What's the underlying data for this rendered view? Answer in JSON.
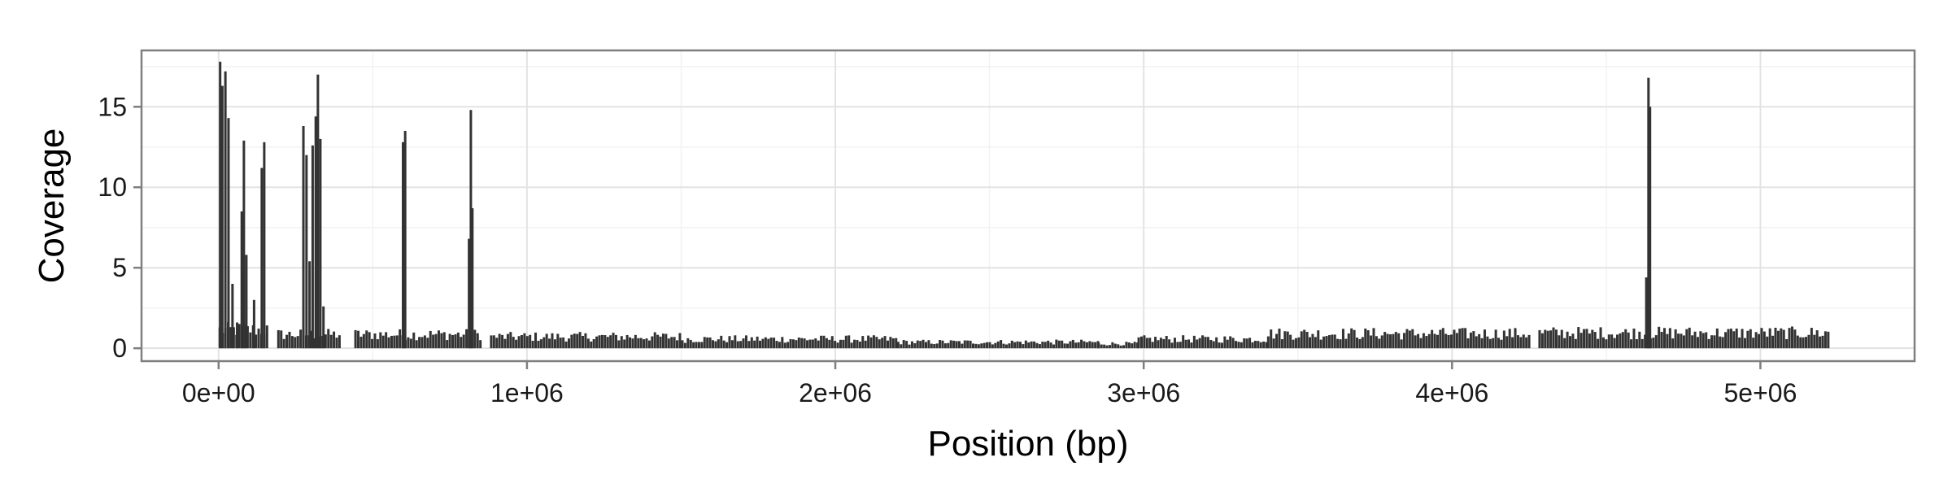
{
  "chart_data": {
    "type": "bar",
    "title": "",
    "xlabel": "Position (bp)",
    "ylabel": "Coverage",
    "xlim": [
      -250000,
      5500000
    ],
    "ylim": [
      -0.8,
      18.5
    ],
    "grid": true,
    "legend": "none",
    "bar_color": "#333333",
    "x_ticks": [
      {
        "value": 0,
        "label": "0e+00"
      },
      {
        "value": 1000000,
        "label": "1e+06"
      },
      {
        "value": 2000000,
        "label": "2e+06"
      },
      {
        "value": 3000000,
        "label": "3e+06"
      },
      {
        "value": 4000000,
        "label": "4e+06"
      },
      {
        "value": 5000000,
        "label": "5e+06"
      }
    ],
    "y_ticks": [
      {
        "value": 0,
        "label": "0"
      },
      {
        "value": 5,
        "label": "5"
      },
      {
        "value": 10,
        "label": "10"
      },
      {
        "value": 15,
        "label": "15"
      }
    ],
    "baseline_regions": [
      {
        "x_start": 0,
        "x_end": 160000,
        "level": 1.2
      },
      {
        "x_start": 190000,
        "x_end": 390000,
        "level": 0.9
      },
      {
        "x_start": 440000,
        "x_end": 850000,
        "level": 0.9
      },
      {
        "x_start": 880000,
        "x_end": 1500000,
        "level": 0.75
      },
      {
        "x_start": 1500000,
        "x_end": 2200000,
        "level": 0.6
      },
      {
        "x_start": 2200000,
        "x_end": 2850000,
        "level": 0.4
      },
      {
        "x_start": 2850000,
        "x_end": 2980000,
        "level": 0.3
      },
      {
        "x_start": 2980000,
        "x_end": 3400000,
        "level": 0.6
      },
      {
        "x_start": 3400000,
        "x_end": 4250000,
        "level": 0.95
      },
      {
        "x_start": 4280000,
        "x_end": 5220000,
        "level": 1.0
      }
    ],
    "peaks": [
      {
        "x": 5000,
        "value": 17.8
      },
      {
        "x": 12000,
        "value": 16.3
      },
      {
        "x": 22000,
        "value": 17.2
      },
      {
        "x": 32000,
        "value": 14.3
      },
      {
        "x": 45000,
        "value": 4.0
      },
      {
        "x": 60000,
        "value": 1.6
      },
      {
        "x": 75000,
        "value": 8.5
      },
      {
        "x": 82000,
        "value": 12.9
      },
      {
        "x": 90000,
        "value": 5.8
      },
      {
        "x": 115000,
        "value": 3.0
      },
      {
        "x": 140000,
        "value": 11.2
      },
      {
        "x": 148000,
        "value": 12.8
      },
      {
        "x": 275000,
        "value": 13.8
      },
      {
        "x": 285000,
        "value": 12.0
      },
      {
        "x": 295000,
        "value": 5.4
      },
      {
        "x": 305000,
        "value": 12.6
      },
      {
        "x": 315000,
        "value": 14.4
      },
      {
        "x": 322000,
        "value": 17.0
      },
      {
        "x": 330000,
        "value": 13.0
      },
      {
        "x": 340000,
        "value": 2.6
      },
      {
        "x": 598000,
        "value": 12.8
      },
      {
        "x": 605000,
        "value": 13.5
      },
      {
        "x": 812000,
        "value": 6.8
      },
      {
        "x": 818000,
        "value": 14.8
      },
      {
        "x": 823000,
        "value": 8.7
      },
      {
        "x": 4630000,
        "value": 4.4
      },
      {
        "x": 4637000,
        "value": 16.8
      },
      {
        "x": 4642000,
        "value": 15.0
      }
    ]
  }
}
